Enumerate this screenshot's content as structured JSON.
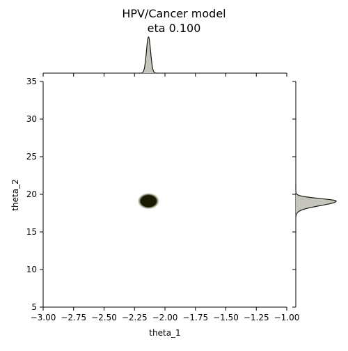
{
  "chart_data": {
    "type": "jointplot",
    "title": "HPV/Cancer model",
    "subtitle": "eta 0.100",
    "xlabel": "theta_1",
    "ylabel": "theta_2",
    "xlim": [
      -3.0,
      -1.0
    ],
    "ylim": [
      5,
      35
    ],
    "xticks": [
      "−3.00",
      "−2.75",
      "−2.50",
      "−2.25",
      "−2.00",
      "−1.75",
      "−1.50",
      "−1.25",
      "−1.00"
    ],
    "xtick_values": [
      -3.0,
      -2.75,
      -2.5,
      -2.25,
      -2.0,
      -1.75,
      -1.5,
      -1.25,
      -1.0
    ],
    "yticks": [
      "5",
      "10",
      "15",
      "20",
      "25",
      "30",
      "35"
    ],
    "ytick_values": [
      5,
      10,
      15,
      20,
      25,
      30,
      35
    ],
    "grid": false,
    "joint": {
      "kind": "kde",
      "center": [
        -2.135,
        19.1
      ],
      "spread": [
        0.03,
        0.9
      ]
    },
    "marginal_x": {
      "kind": "kde",
      "center": -2.135,
      "spread": 0.017
    },
    "marginal_y": {
      "kind": "kde",
      "center": 19.1,
      "spread": 0.45
    },
    "colors": {
      "density_core": "#1a1a00",
      "density_edge": "#b8b8a8",
      "marginal_fill": "#c5c5bd",
      "marginal_line": "#1a1a10",
      "axis": "#000000"
    }
  }
}
